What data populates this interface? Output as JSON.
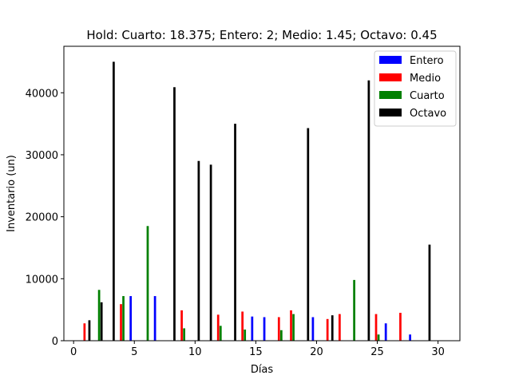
{
  "chart_data": {
    "type": "bar",
    "title": "Hold: Cuarto: 18.375; Entero: 2; Medio: 1.45; Octavo: 0.45",
    "xlabel": "Días",
    "ylabel": "Inventario (un)",
    "xlim": [
      -0.8,
      31.8
    ],
    "ylim": [
      0,
      47500
    ],
    "xticks": [
      0,
      5,
      10,
      15,
      20,
      25,
      30
    ],
    "yticks": [
      0,
      10000,
      20000,
      30000,
      40000
    ],
    "legend_position": "top-right",
    "grid": false,
    "bar_width": 0.18,
    "series": [
      {
        "name": "Entero",
        "color": "#0000ff",
        "offset": -0.3,
        "points": [
          {
            "x": 5,
            "y": 7200
          },
          {
            "x": 7,
            "y": 7200
          },
          {
            "x": 15,
            "y": 3900
          },
          {
            "x": 16,
            "y": 3800
          },
          {
            "x": 20,
            "y": 3800
          },
          {
            "x": 26,
            "y": 2800
          },
          {
            "x": 28,
            "y": 1000
          }
        ]
      },
      {
        "name": "Medio",
        "color": "#ff0000",
        "offset": -0.1,
        "points": [
          {
            "x": 1,
            "y": 2800
          },
          {
            "x": 4,
            "y": 5900
          },
          {
            "x": 9,
            "y": 4900
          },
          {
            "x": 12,
            "y": 4200
          },
          {
            "x": 14,
            "y": 4700
          },
          {
            "x": 17,
            "y": 3800
          },
          {
            "x": 18,
            "y": 4900
          },
          {
            "x": 21,
            "y": 3500
          },
          {
            "x": 22,
            "y": 4300
          },
          {
            "x": 25,
            "y": 4300
          },
          {
            "x": 27,
            "y": 4500
          }
        ]
      },
      {
        "name": "Cuarto",
        "color": "#008000",
        "offset": 0.1,
        "points": [
          {
            "x": 2,
            "y": 8200
          },
          {
            "x": 4,
            "y": 7200
          },
          {
            "x": 6,
            "y": 18500
          },
          {
            "x": 9,
            "y": 2000
          },
          {
            "x": 12,
            "y": 2400
          },
          {
            "x": 14,
            "y": 1800
          },
          {
            "x": 17,
            "y": 1700
          },
          {
            "x": 18,
            "y": 4300
          },
          {
            "x": 23,
            "y": 9800
          },
          {
            "x": 25,
            "y": 1000
          }
        ]
      },
      {
        "name": "Octavo",
        "color": "#000000",
        "offset": 0.3,
        "points": [
          {
            "x": 1,
            "y": 3300
          },
          {
            "x": 2,
            "y": 6200
          },
          {
            "x": 3,
            "y": 45000
          },
          {
            "x": 8,
            "y": 40900
          },
          {
            "x": 10,
            "y": 29000
          },
          {
            "x": 11,
            "y": 28400
          },
          {
            "x": 13,
            "y": 35000
          },
          {
            "x": 19,
            "y": 34300
          },
          {
            "x": 21,
            "y": 4100
          },
          {
            "x": 24,
            "y": 42000
          },
          {
            "x": 29,
            "y": 15500
          }
        ]
      }
    ]
  }
}
